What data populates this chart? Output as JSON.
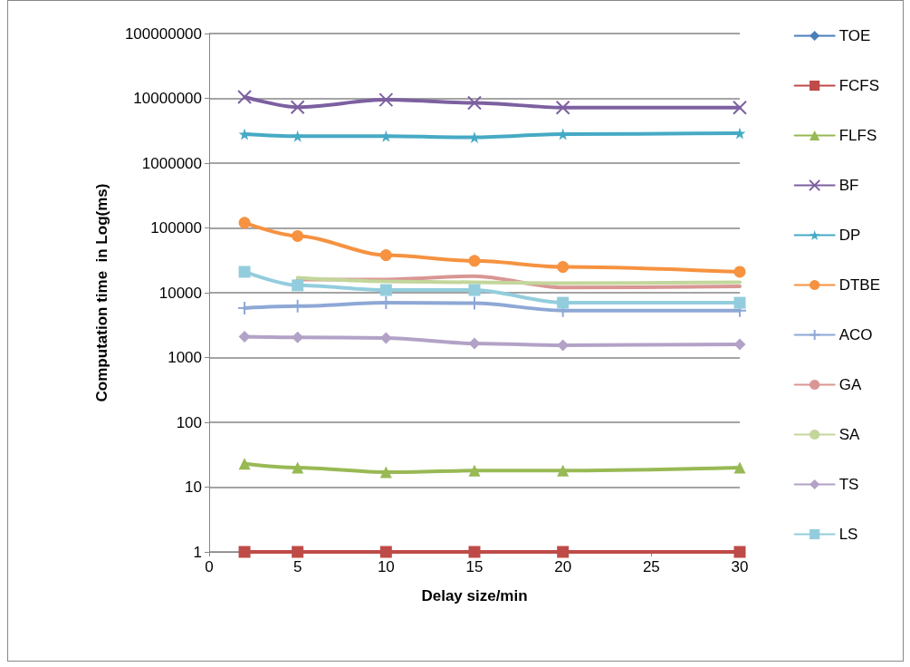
{
  "chart_data": {
    "type": "line",
    "xlabel": "Delay size/min",
    "ylabel": "Computation time  in Log(ms)",
    "x": [
      2,
      5,
      10,
      15,
      20,
      30
    ],
    "xlim": [
      0,
      30
    ],
    "xticks": [
      0,
      5,
      10,
      15,
      20,
      25,
      30
    ],
    "ylim": [
      1,
      100000000
    ],
    "yticks": [
      1,
      10,
      100,
      1000,
      10000,
      100000,
      1000000,
      10000000,
      100000000
    ],
    "log": "y",
    "grid": "y",
    "legend": "right",
    "series": [
      {
        "name": "TOE",
        "color": "#4a7ebb",
        "marker": "diamond",
        "values": [
          null,
          null,
          null,
          null,
          null,
          null
        ]
      },
      {
        "name": "FCFS",
        "color": "#be4b48",
        "marker": "square",
        "values": [
          1,
          1,
          1,
          1,
          1,
          1
        ]
      },
      {
        "name": "FLFS",
        "color": "#98b954",
        "marker": "triangle",
        "values": [
          23,
          20,
          17,
          18,
          18,
          20
        ]
      },
      {
        "name": "BF",
        "color": "#7d60a0",
        "marker": "cross",
        "values": [
          10500000,
          7300000,
          9500000,
          8500000,
          7200000,
          7200000
        ]
      },
      {
        "name": "DP",
        "color": "#46aac5",
        "marker": "star",
        "values": [
          2800000,
          2600000,
          2600000,
          2500000,
          2800000,
          2900000
        ]
      },
      {
        "name": "DTBE",
        "color": "#f69240",
        "marker": "circle",
        "values": [
          120000,
          75000,
          38000,
          31000,
          25000,
          21000
        ]
      },
      {
        "name": "ACO",
        "color": "#8ea8d6",
        "marker": "plus",
        "values": [
          5800,
          6200,
          7000,
          6900,
          5300,
          5300
        ]
      },
      {
        "name": "GA",
        "color": "#d99694",
        "marker": "none",
        "values": [
          null,
          16000,
          16000,
          18000,
          12000,
          12500
        ]
      },
      {
        "name": "SA",
        "color": "#c3d69b",
        "marker": "none",
        "values": [
          null,
          17000,
          15000,
          14500,
          14000,
          14500
        ]
      },
      {
        "name": "TS",
        "color": "#b3a2c7",
        "marker": "diamond",
        "values": [
          2100,
          2050,
          2000,
          1650,
          1550,
          1600
        ]
      },
      {
        "name": "LS",
        "color": "#93cddd",
        "marker": "square",
        "values": [
          21000,
          13000,
          11000,
          11000,
          7000,
          7000
        ]
      }
    ]
  }
}
